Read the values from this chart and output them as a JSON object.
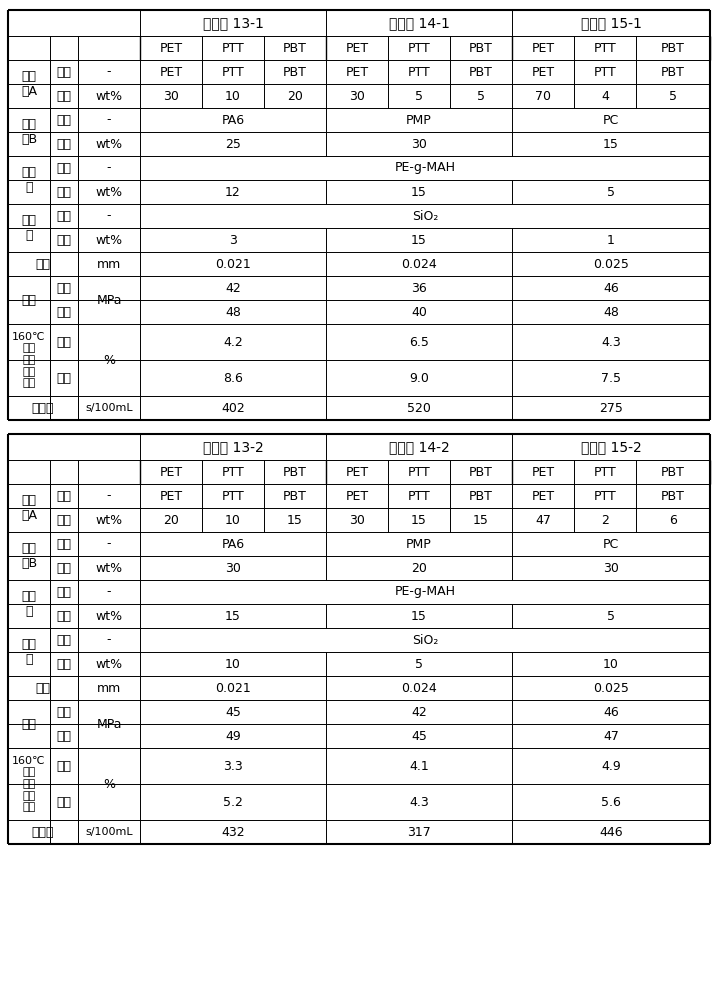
{
  "tables": [
    {
      "example_labels": [
        "实施例 13-1",
        "实施例 14-1",
        "实施例 15-1"
      ],
      "polyA_mat": [
        "PET",
        "PTT",
        "PBT",
        "PET",
        "PTT",
        "PBT",
        "PET",
        "PTT",
        "PBT"
      ],
      "polyA_cont": [
        "30",
        "10",
        "20",
        "30",
        "5",
        "5",
        "70",
        "4",
        "5"
      ],
      "polyB_mat": [
        "PA6",
        "PMP",
        "PC"
      ],
      "polyB_cont": [
        "25",
        "30",
        "15"
      ],
      "compat_mat": "PE-g-MAH",
      "compat_cont": [
        "12",
        "15",
        "5"
      ],
      "pore_mat": "SiO₂",
      "pore_cont": [
        "3",
        "15",
        "1"
      ],
      "thickness": [
        "0.021",
        "0.024",
        "0.025"
      ],
      "strength_h": [
        "42",
        "36",
        "46"
      ],
      "strength_v": [
        "48",
        "40",
        "48"
      ],
      "shrink_h": [
        "4.2",
        "6.5",
        "4.3"
      ],
      "shrink_v": [
        "8.6",
        "9.0",
        "7.5"
      ],
      "air_perm": [
        "402",
        "520",
        "275"
      ]
    },
    {
      "example_labels": [
        "实施例 13-2",
        "实施例 14-2",
        "实施例 15-2"
      ],
      "polyA_mat": [
        "PET",
        "PTT",
        "PBT",
        "PET",
        "PTT",
        "PBT",
        "PET",
        "PTT",
        "PBT"
      ],
      "polyA_cont": [
        "20",
        "10",
        "15",
        "30",
        "15",
        "15",
        "47",
        "2",
        "6"
      ],
      "polyB_mat": [
        "PA6",
        "PMP",
        "PC"
      ],
      "polyB_cont": [
        "30",
        "20",
        "30"
      ],
      "compat_mat": "PE-g-MAH",
      "compat_cont": [
        "15",
        "15",
        "5"
      ],
      "pore_mat": "SiO₂",
      "pore_cont": [
        "10",
        "5",
        "10"
      ],
      "thickness": [
        "0.021",
        "0.024",
        "0.025"
      ],
      "strength_h": [
        "45",
        "42",
        "46"
      ],
      "strength_v": [
        "49",
        "45",
        "47"
      ],
      "shrink_h": [
        "3.3",
        "4.1",
        "4.9"
      ],
      "shrink_v": [
        "5.2",
        "4.3",
        "5.6"
      ],
      "air_perm": [
        "432",
        "317",
        "446"
      ]
    }
  ],
  "col_bounds": [
    8,
    50,
    78,
    140,
    202,
    264,
    326,
    388,
    450,
    512,
    574,
    636,
    710
  ],
  "font_size": 9,
  "header_font_size": 10
}
